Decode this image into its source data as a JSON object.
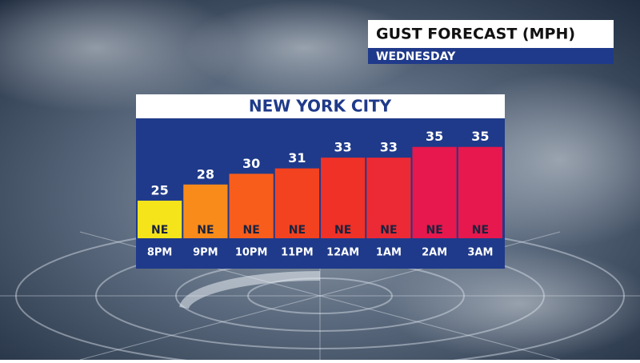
{
  "chart_data": {
    "type": "bar",
    "title": "GUST FORECAST (MPH)",
    "subtitle": "WEDNESDAY",
    "panel_title": "NEW YORK CITY",
    "categories": [
      "8PM",
      "9PM",
      "10PM",
      "11PM",
      "12AM",
      "1AM",
      "2AM",
      "3AM"
    ],
    "values": [
      25,
      28,
      30,
      31,
      33,
      33,
      35,
      35
    ],
    "directions": [
      "NE",
      "NE",
      "NE",
      "NE",
      "NE",
      "NE",
      "NE",
      "NE"
    ],
    "colors": [
      "#f6e41b",
      "#f98b1b",
      "#f85d1c",
      "#f3421f",
      "#ef3128",
      "#ec2a35",
      "#e7184d",
      "#e7184d"
    ],
    "ylim": [
      18,
      36
    ]
  }
}
